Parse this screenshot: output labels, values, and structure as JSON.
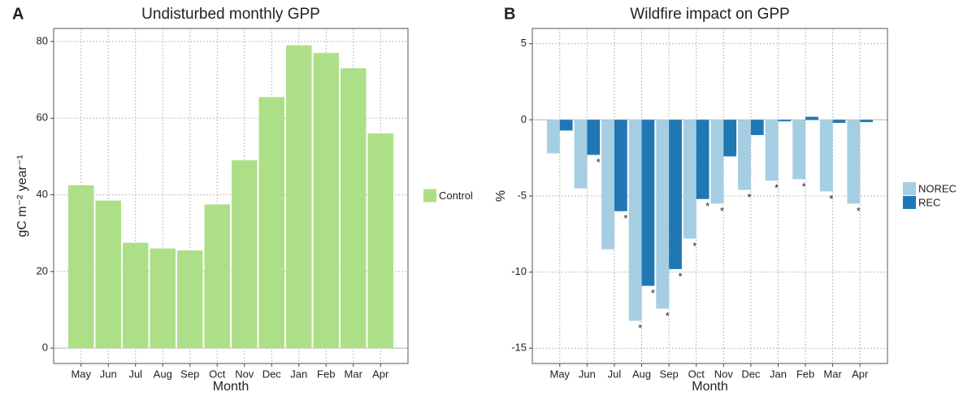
{
  "chart_data": [
    {
      "type": "bar",
      "panel": "A",
      "title": "Undisturbed monthly GPP",
      "x_label": "Month",
      "y_label": "gC m⁻² year⁻¹",
      "categories": [
        "May",
        "Jun",
        "Jul",
        "Aug",
        "Sep",
        "Oct",
        "Nov",
        "Dec",
        "Jan",
        "Feb",
        "Mar",
        "Apr"
      ],
      "series": [
        {
          "name": "Control",
          "color": "#addf88",
          "values": [
            42.5,
            38.5,
            27.5,
            26,
            25.5,
            37.5,
            49,
            65.5,
            79,
            77,
            73,
            56
          ]
        }
      ],
      "ylim": [
        -4,
        83.4
      ],
      "yticks": [
        0,
        20,
        40,
        60,
        80
      ],
      "grid": true,
      "legend": "right"
    },
    {
      "type": "bar",
      "panel": "B",
      "title": "Wildfire impact on GPP",
      "x_label": "Month",
      "y_label": "%",
      "categories": [
        "May",
        "Jun",
        "Jul",
        "Aug",
        "Sep",
        "Oct",
        "Nov",
        "Dec",
        "Jan",
        "Feb",
        "Mar",
        "Apr"
      ],
      "series": [
        {
          "name": "NOREC",
          "color": "#a6cee3",
          "values": [
            -2.2,
            -4.5,
            -8.5,
            -13.2,
            -12.4,
            -7.8,
            -5.5,
            -4.6,
            -4.0,
            -3.9,
            -4.7,
            -5.5
          ],
          "significance": [
            null,
            null,
            null,
            "*",
            "*",
            "*",
            "*",
            "*",
            "*",
            "*",
            "*",
            "*"
          ]
        },
        {
          "name": "REC",
          "color": "#1f78b4",
          "values": [
            -0.7,
            -2.3,
            -6.0,
            -10.9,
            -9.8,
            -5.2,
            -2.4,
            -1.0,
            -0.1,
            0.2,
            -0.2,
            -0.15
          ],
          "significance": [
            null,
            "*",
            "*",
            "*",
            "*",
            "*",
            null,
            null,
            null,
            null,
            null,
            null
          ]
        }
      ],
      "ylim": [
        -16,
        6
      ],
      "yticks": [
        5,
        0,
        -5,
        -10,
        -15
      ],
      "grid": true,
      "legend": "right"
    }
  ]
}
